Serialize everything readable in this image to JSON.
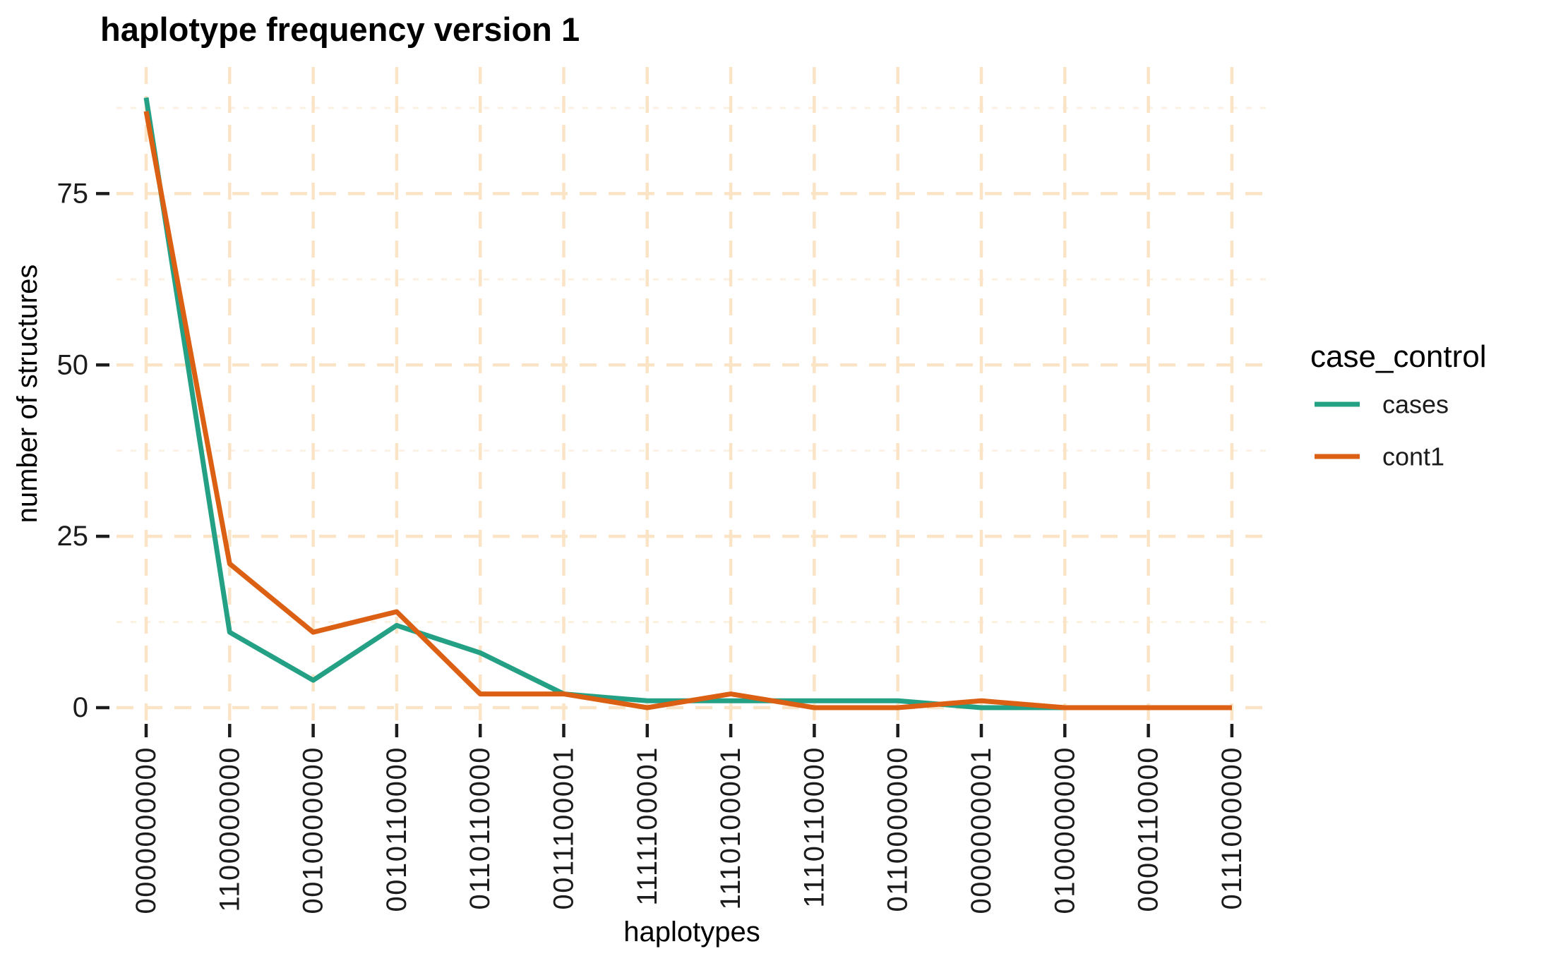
{
  "chart_data": {
    "type": "line",
    "title": "haplotype frequency version 1",
    "xlabel": "haplotypes",
    "ylabel": "number of structures",
    "legend_title": "case_control",
    "legend_position": "right",
    "grid": {
      "major_color": "#FAE4C5",
      "minor_color": "#FCF0E1",
      "style": "dashed",
      "background": "#ffffff"
    },
    "categories": [
      "0000000000",
      "1100000000",
      "0010000000",
      "0010110000",
      "0110110000",
      "0011100001",
      "1111100001",
      "1110100001",
      "1110110000",
      "0110000000",
      "0000000001",
      "0100000000",
      "0000110000",
      "0111000000"
    ],
    "series": [
      {
        "name": "cases",
        "color": "#24A185",
        "values": [
          89,
          11,
          4,
          12,
          8,
          2,
          1,
          1,
          1,
          1,
          0,
          0,
          0,
          0
        ]
      },
      {
        "name": "cont1",
        "color": "#DB6014",
        "values": [
          87,
          21,
          11,
          14,
          2,
          2,
          0,
          2,
          0,
          0,
          1,
          0,
          0,
          0
        ]
      }
    ],
    "y_ticks": [
      0,
      25,
      50,
      75
    ],
    "y_minor_ticks": [
      12.5,
      37.5,
      62.5,
      87.5
    ],
    "ylim": [
      -2,
      93.5
    ],
    "tick_color": "#1c1c1c"
  }
}
